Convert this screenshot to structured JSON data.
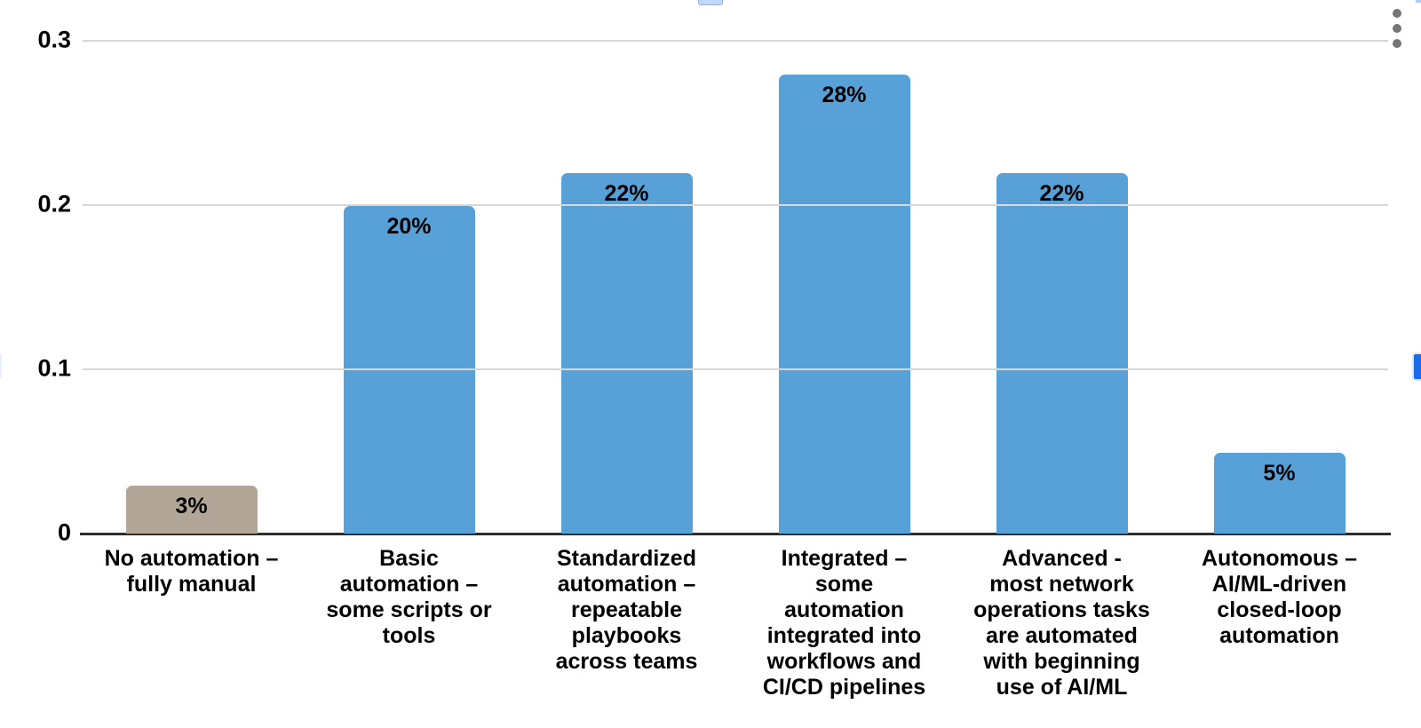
{
  "chart_data": {
    "type": "bar",
    "title": "",
    "xlabel": "",
    "ylabel": "",
    "categories": [
      "No automation –\nfully manual",
      "Basic\nautomation –\nsome scripts or\ntools",
      "Standardized\nautomation –\nrepeatable\nplaybooks\nacross teams",
      "Integrated –\nsome\nautomation\nintegrated into\nworkflows and\nCI/CD pipelines",
      "Advanced -\nmost network\noperations tasks\nare automated\nwith beginning\nuse of AI/ML",
      "Autonomous –\nAI/ML-driven\nclosed-loop\nautomation"
    ],
    "values": [
      0.03,
      0.2,
      0.22,
      0.28,
      0.22,
      0.05
    ],
    "data_labels": [
      "3%",
      "20%",
      "22%",
      "28%",
      "22%",
      "5%"
    ],
    "bar_colors": [
      "#b1a697",
      "#57a1d8",
      "#57a1d8",
      "#57a1d8",
      "#57a1d8",
      "#57a1d8"
    ],
    "ylim": [
      0,
      0.3
    ],
    "yticks": [
      "0.3",
      "0.2",
      "0.1",
      "0"
    ],
    "ytick_values": [
      0.3,
      0.2,
      0.1,
      0
    ],
    "grid": true,
    "legend": "none",
    "gridline_color": "#d8d8d8",
    "axis_color": "#2d2d2d"
  },
  "chart_menu": {
    "kebab_tooltip": "Chart options"
  }
}
